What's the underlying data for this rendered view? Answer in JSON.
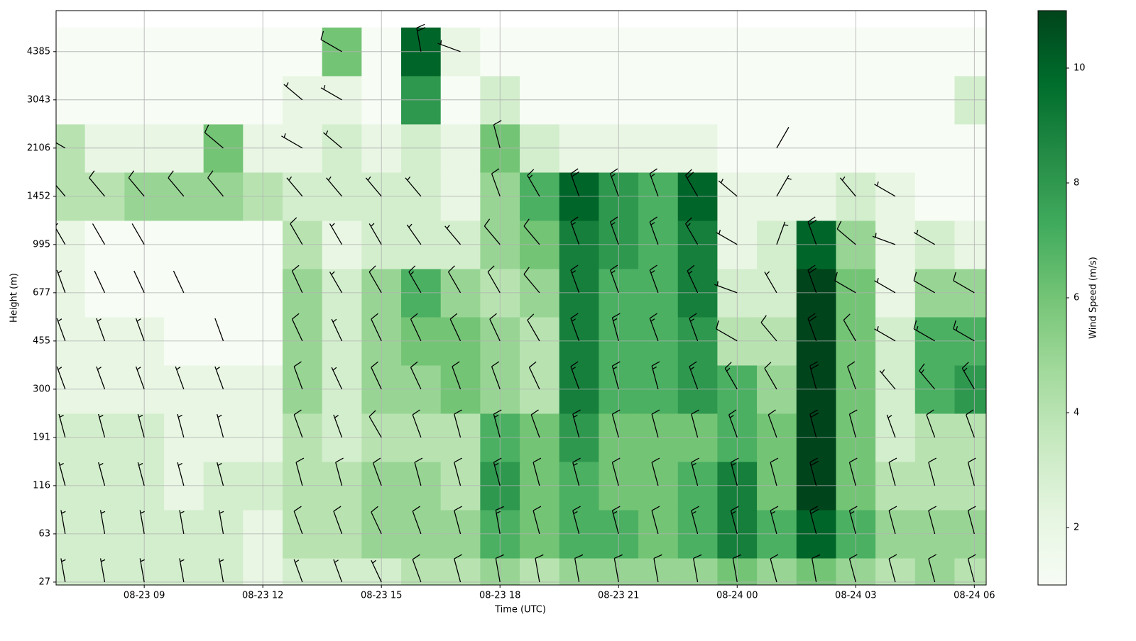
{
  "chart_data": {
    "type": "barb-heatmap",
    "xlabel": "Time (UTC)",
    "ylabel": "Height (m)",
    "colorbar_label": "Wind Speed (m/s)",
    "colormap": "Greens",
    "grid": true,
    "x": [
      7,
      8,
      9,
      10,
      11,
      12,
      13,
      14,
      15,
      16,
      17,
      18,
      19,
      20,
      21,
      22,
      23,
      24,
      25,
      26,
      27,
      28,
      29,
      30
    ],
    "y": [
      0,
      1,
      2,
      3,
      4,
      5,
      6,
      7,
      8,
      9,
      10,
      11
    ],
    "xlim": [
      6.77,
      30.3
    ],
    "xticks": [
      {
        "value": 9,
        "label": "08-23 09"
      },
      {
        "value": 12,
        "label": "08-23 12"
      },
      {
        "value": 15,
        "label": "08-23 15"
      },
      {
        "value": 18,
        "label": "08-23 18"
      },
      {
        "value": 21,
        "label": "08-23 21"
      },
      {
        "value": 24,
        "label": "08-24 00"
      },
      {
        "value": 27,
        "label": "08-24 03"
      },
      {
        "value": 30,
        "label": "08-24 06"
      }
    ],
    "ylim": [
      -0.06,
      11.85
    ],
    "yticks": [
      {
        "value": 0,
        "label": "27"
      },
      {
        "value": 1,
        "label": "63"
      },
      {
        "value": 2,
        "label": "116"
      },
      {
        "value": 3,
        "label": "191"
      },
      {
        "value": 4,
        "label": "300"
      },
      {
        "value": 5,
        "label": "455"
      },
      {
        "value": 6,
        "label": "677"
      },
      {
        "value": 7,
        "label": "995"
      },
      {
        "value": 8,
        "label": "1452"
      },
      {
        "value": 9,
        "label": "2106"
      },
      {
        "value": 10,
        "label": "3043"
      },
      {
        "value": 11,
        "label": "4385"
      }
    ],
    "clim": [
      1,
      11
    ],
    "cticks": [
      2,
      4,
      6,
      8,
      10
    ],
    "speed": [
      [
        3,
        3,
        3,
        3,
        2,
        2,
        2,
        2,
        4,
        4,
        1,
        1
      ],
      [
        3,
        3,
        3,
        3,
        2,
        2,
        1,
        1,
        4,
        2,
        1,
        1
      ],
      [
        3,
        3,
        3,
        3,
        2,
        2,
        1,
        1,
        5,
        2,
        1,
        1
      ],
      [
        3,
        3,
        2,
        2,
        2,
        1,
        1,
        1,
        5,
        2,
        1,
        1
      ],
      [
        3,
        3,
        3,
        2,
        2,
        1,
        1,
        1,
        5,
        6,
        1,
        1
      ],
      [
        2,
        2,
        3,
        2,
        2,
        1,
        1,
        1,
        4,
        2,
        1,
        1
      ],
      [
        3,
        4,
        4,
        4,
        5,
        5,
        5,
        4,
        3,
        2,
        2,
        1
      ],
      [
        3,
        4,
        4,
        3,
        3,
        3,
        3,
        2,
        3,
        3,
        2,
        6
      ],
      [
        3,
        5,
        5,
        4,
        5,
        5,
        5,
        3,
        3,
        2,
        1,
        1
      ],
      [
        4,
        5,
        5,
        4,
        5,
        6,
        7,
        3,
        3,
        3,
        8,
        10
      ],
      [
        4,
        5,
        4,
        4,
        6,
        6,
        5,
        3,
        2,
        2,
        1,
        2
      ],
      [
        5,
        7,
        8,
        7,
        5,
        5,
        4,
        5,
        5,
        6,
        3,
        1
      ],
      [
        4,
        6,
        6,
        6,
        4,
        4,
        5,
        6,
        7,
        3,
        1,
        1
      ],
      [
        5,
        7,
        7,
        8,
        9,
        9,
        9,
        9,
        10,
        2,
        1,
        1
      ],
      [
        5,
        7,
        6,
        6,
        7,
        7,
        7,
        8,
        8,
        2,
        1,
        1
      ],
      [
        5,
        6,
        6,
        6,
        7,
        7,
        7,
        7,
        7,
        2,
        1,
        1
      ],
      [
        5,
        7,
        7,
        6,
        8,
        8,
        9,
        9,
        10,
        2,
        1,
        1
      ],
      [
        6,
        9,
        9,
        7,
        7,
        4,
        3,
        2,
        2,
        1,
        1,
        1
      ],
      [
        5,
        7,
        6,
        6,
        5,
        4,
        3,
        3,
        2,
        1,
        1,
        1
      ],
      [
        6,
        10,
        11,
        11,
        11,
        11,
        11,
        10,
        2,
        1,
        1,
        1
      ],
      [
        5,
        7,
        6,
        6,
        6,
        6,
        6,
        5,
        3,
        1,
        1,
        1
      ],
      [
        4,
        5,
        4,
        3,
        3,
        3,
        2,
        2,
        2,
        1,
        1,
        1
      ],
      [
        5,
        5,
        4,
        4,
        7,
        7,
        5,
        3,
        1,
        1,
        1,
        1
      ],
      [
        4,
        5,
        4,
        4,
        8,
        7,
        5,
        2,
        1,
        1,
        3,
        1
      ]
    ],
    "direction": [
      [
        350,
        350,
        345,
        345,
        340,
        340,
        340,
        330,
        320,
        300,
        null,
        null
      ],
      [
        350,
        350,
        345,
        345,
        340,
        340,
        335,
        330,
        320,
        null,
        null,
        null
      ],
      [
        350,
        350,
        345,
        345,
        340,
        340,
        335,
        330,
        320,
        null,
        null,
        null
      ],
      [
        350,
        350,
        345,
        345,
        340,
        null,
        335,
        null,
        320,
        null,
        null,
        null
      ],
      [
        350,
        350,
        345,
        345,
        340,
        340,
        null,
        null,
        320,
        310,
        null,
        null
      ],
      [
        null,
        null,
        null,
        null,
        null,
        null,
        null,
        null,
        null,
        null,
        null,
        null
      ],
      [
        340,
        340,
        345,
        340,
        340,
        335,
        335,
        330,
        320,
        300,
        310,
        null
      ],
      [
        340,
        340,
        345,
        340,
        335,
        335,
        330,
        330,
        320,
        310,
        300,
        300
      ],
      [
        335,
        335,
        340,
        330,
        335,
        335,
        330,
        330,
        320,
        null,
        null,
        null
      ],
      [
        340,
        340,
        345,
        340,
        335,
        335,
        330,
        325,
        320,
        null,
        null,
        350
      ],
      [
        345,
        345,
        345,
        345,
        340,
        335,
        330,
        320,
        null,
        null,
        null,
        290
      ],
      [
        350,
        350,
        345,
        345,
        340,
        335,
        330,
        320,
        340,
        345,
        null,
        null
      ],
      [
        350,
        345,
        345,
        340,
        335,
        330,
        320,
        320,
        330,
        null,
        null,
        null
      ],
      [
        350,
        345,
        345,
        345,
        340,
        340,
        340,
        340,
        340,
        null,
        null,
        null
      ],
      [
        350,
        345,
        345,
        345,
        345,
        345,
        340,
        340,
        340,
        null,
        null,
        null
      ],
      [
        350,
        345,
        345,
        345,
        345,
        340,
        340,
        340,
        340,
        null,
        null,
        null
      ],
      [
        350,
        345,
        345,
        345,
        340,
        340,
        335,
        330,
        330,
        null,
        null,
        null
      ],
      [
        350,
        345,
        345,
        340,
        330,
        300,
        290,
        300,
        310,
        null,
        null,
        null
      ],
      [
        345,
        345,
        345,
        340,
        330,
        320,
        330,
        20,
        30,
        30,
        null,
        null
      ],
      [
        350,
        345,
        345,
        345,
        345,
        340,
        340,
        340,
        null,
        null,
        null,
        null
      ],
      [
        345,
        345,
        345,
        345,
        340,
        330,
        300,
        310,
        320,
        null,
        null,
        null
      ],
      [
        345,
        345,
        345,
        340,
        320,
        300,
        300,
        290,
        300,
        null,
        null,
        null
      ],
      [
        345,
        345,
        345,
        340,
        320,
        300,
        300,
        300,
        null,
        null,
        null,
        null
      ],
      [
        345,
        345,
        345,
        340,
        330,
        300,
        300,
        null,
        null,
        null,
        null,
        null
      ]
    ]
  }
}
